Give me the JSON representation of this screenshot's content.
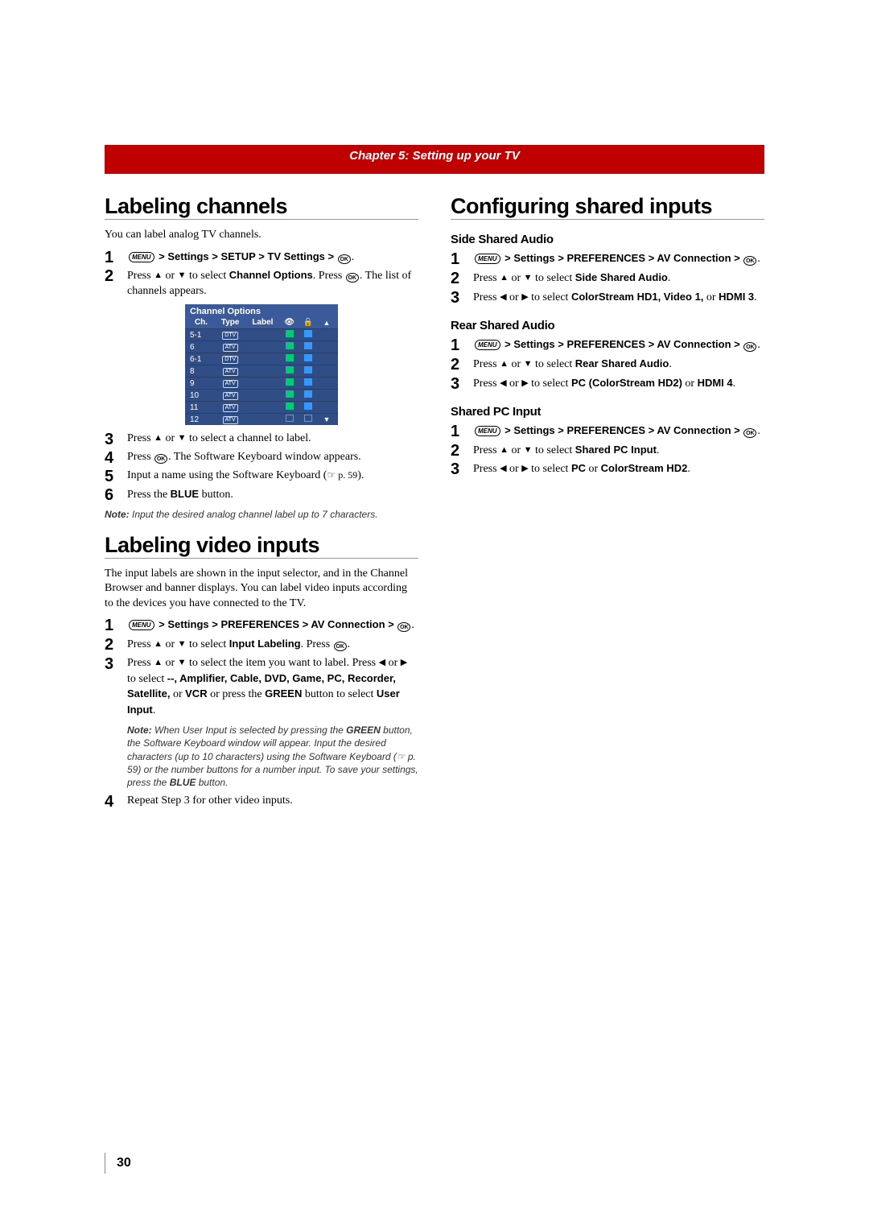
{
  "chapter": "Chapter 5: Setting up your TV",
  "page_number": "30",
  "icons": {
    "menu_label": "MENU",
    "ok_label": "OK",
    "up": "▲",
    "down": "▼",
    "left": "◀",
    "right": "▶",
    "lock": "🔒",
    "eye": "👁"
  },
  "col1": {
    "sec1": {
      "title": "Labeling channels",
      "intro": "You can label analog TV channels.",
      "step1_path": " > Settings > SETUP > TV Settings > ",
      "step2_a": "Press ",
      "step2_b": " or ",
      "step2_c": " to select ",
      "step2_opt": "Channel Options",
      "step2_d": ". Press ",
      "step2_e": ". The list of channels appears.",
      "table": {
        "title": "Channel Options",
        "headers": {
          "ch": "Ch.",
          "type": "Type",
          "label": "Label"
        },
        "rows": [
          {
            "ch": "5-1",
            "type": "DTV"
          },
          {
            "ch": "6",
            "type": "ATV"
          },
          {
            "ch": "6-1",
            "type": "DTV"
          },
          {
            "ch": "8",
            "type": "ATV"
          },
          {
            "ch": "9",
            "type": "ATV"
          },
          {
            "ch": "10",
            "type": "ATV"
          },
          {
            "ch": "11",
            "type": "ATV"
          },
          {
            "ch": "12",
            "type": "ATV"
          }
        ]
      },
      "step3_a": "Press ",
      "step3_b": " or ",
      "step3_c": " to select a channel to label.",
      "step4_a": "Press ",
      "step4_b": ". The Software Keyboard window appears.",
      "step5_a": "Input a name using the Software Keyboard (",
      "step5_ref": "☞ p. 59",
      "step5_b": ").",
      "step6_a": "Press the ",
      "step6_blue": "BLUE",
      "step6_b": " button.",
      "note_label": "Note:",
      "note_text": " Input the desired analog channel label up to 7 characters."
    },
    "sec2": {
      "title": "Labeling video inputs",
      "intro": "The input labels are shown in the input selector, and in the Channel Browser and banner displays. You can label video inputs according to the devices you have connected to the TV.",
      "step1_path_a": " > Settings > PREFERENCES > AV Connection > ",
      "step2_a": "Press ",
      "step2_b": " or ",
      "step2_c": " to select ",
      "step2_opt": "Input Labeling",
      "step2_d": ". Press ",
      "step2_e": ".",
      "step3_a": "Press ",
      "step3_b": " or ",
      "step3_c": " to select the item you want to label. Press ",
      "step3_d": " or ",
      "step3_e": " to select ",
      "step3_opts": "--, Amplifier, Cable, DVD, Game, PC, Recorder, Satellite,",
      "step3_or": " or ",
      "step3_vcr": "VCR",
      "step3_f": " or press the ",
      "step3_green": "GREEN",
      "step3_g": " button to select ",
      "step3_ui": "User Input",
      "step3_h": ".",
      "note_label": "Note:",
      "note_text_a": " When User Input is selected by pressing the ",
      "note_green": "GREEN",
      "note_text_b": " button, the Software Keyboard window will appear. Input the desired characters (up to 10 characters) using the Software Keyboard (☞ p. 59) or the number buttons for a number input. To save your settings, press the ",
      "note_blue": "BLUE",
      "note_text_c": " button.",
      "step4": "Repeat Step 3 for other video inputs."
    }
  },
  "col2": {
    "title": "Configuring shared inputs",
    "sub1": {
      "title": "Side Shared Audio",
      "step1_path": " > Settings > PREFERENCES > AV Connection > ",
      "step2_a": "Press ",
      "step2_b": " or ",
      "step2_c": " to select ",
      "step2_opt": "Side Shared Audio",
      "step2_d": ".",
      "step3_a": "Press ",
      "step3_b": " or ",
      "step3_c": " to select ",
      "step3_opts": "ColorStream HD1, Video 1,",
      "step3_or": " or ",
      "step3_last": "HDMI 3",
      "step3_d": "."
    },
    "sub2": {
      "title": "Rear Shared Audio",
      "step1_path": " > Settings > PREFERENCES > AV Connection > ",
      "step2_a": "Press ",
      "step2_b": " or ",
      "step2_c": " to select ",
      "step2_opt": "Rear Shared Audio",
      "step2_d": ".",
      "step3_a": "Press ",
      "step3_b": " or ",
      "step3_c": " to select ",
      "step3_opts": "PC (ColorStream HD2)",
      "step3_or": " or ",
      "step3_last": "HDMI 4",
      "step3_d": "."
    },
    "sub3": {
      "title": "Shared PC Input",
      "step1_path": " > Settings > PREFERENCES > AV Connection > ",
      "step2_a": "Press ",
      "step2_b": " or ",
      "step2_c": " to select ",
      "step2_opt": "Shared PC Input",
      "step2_d": ".",
      "step3_a": "Press ",
      "step3_b": " or ",
      "step3_c": " to select ",
      "step3_opts": "PC",
      "step3_or": " or ",
      "step3_last": "ColorStream HD2",
      "step3_d": "."
    }
  }
}
